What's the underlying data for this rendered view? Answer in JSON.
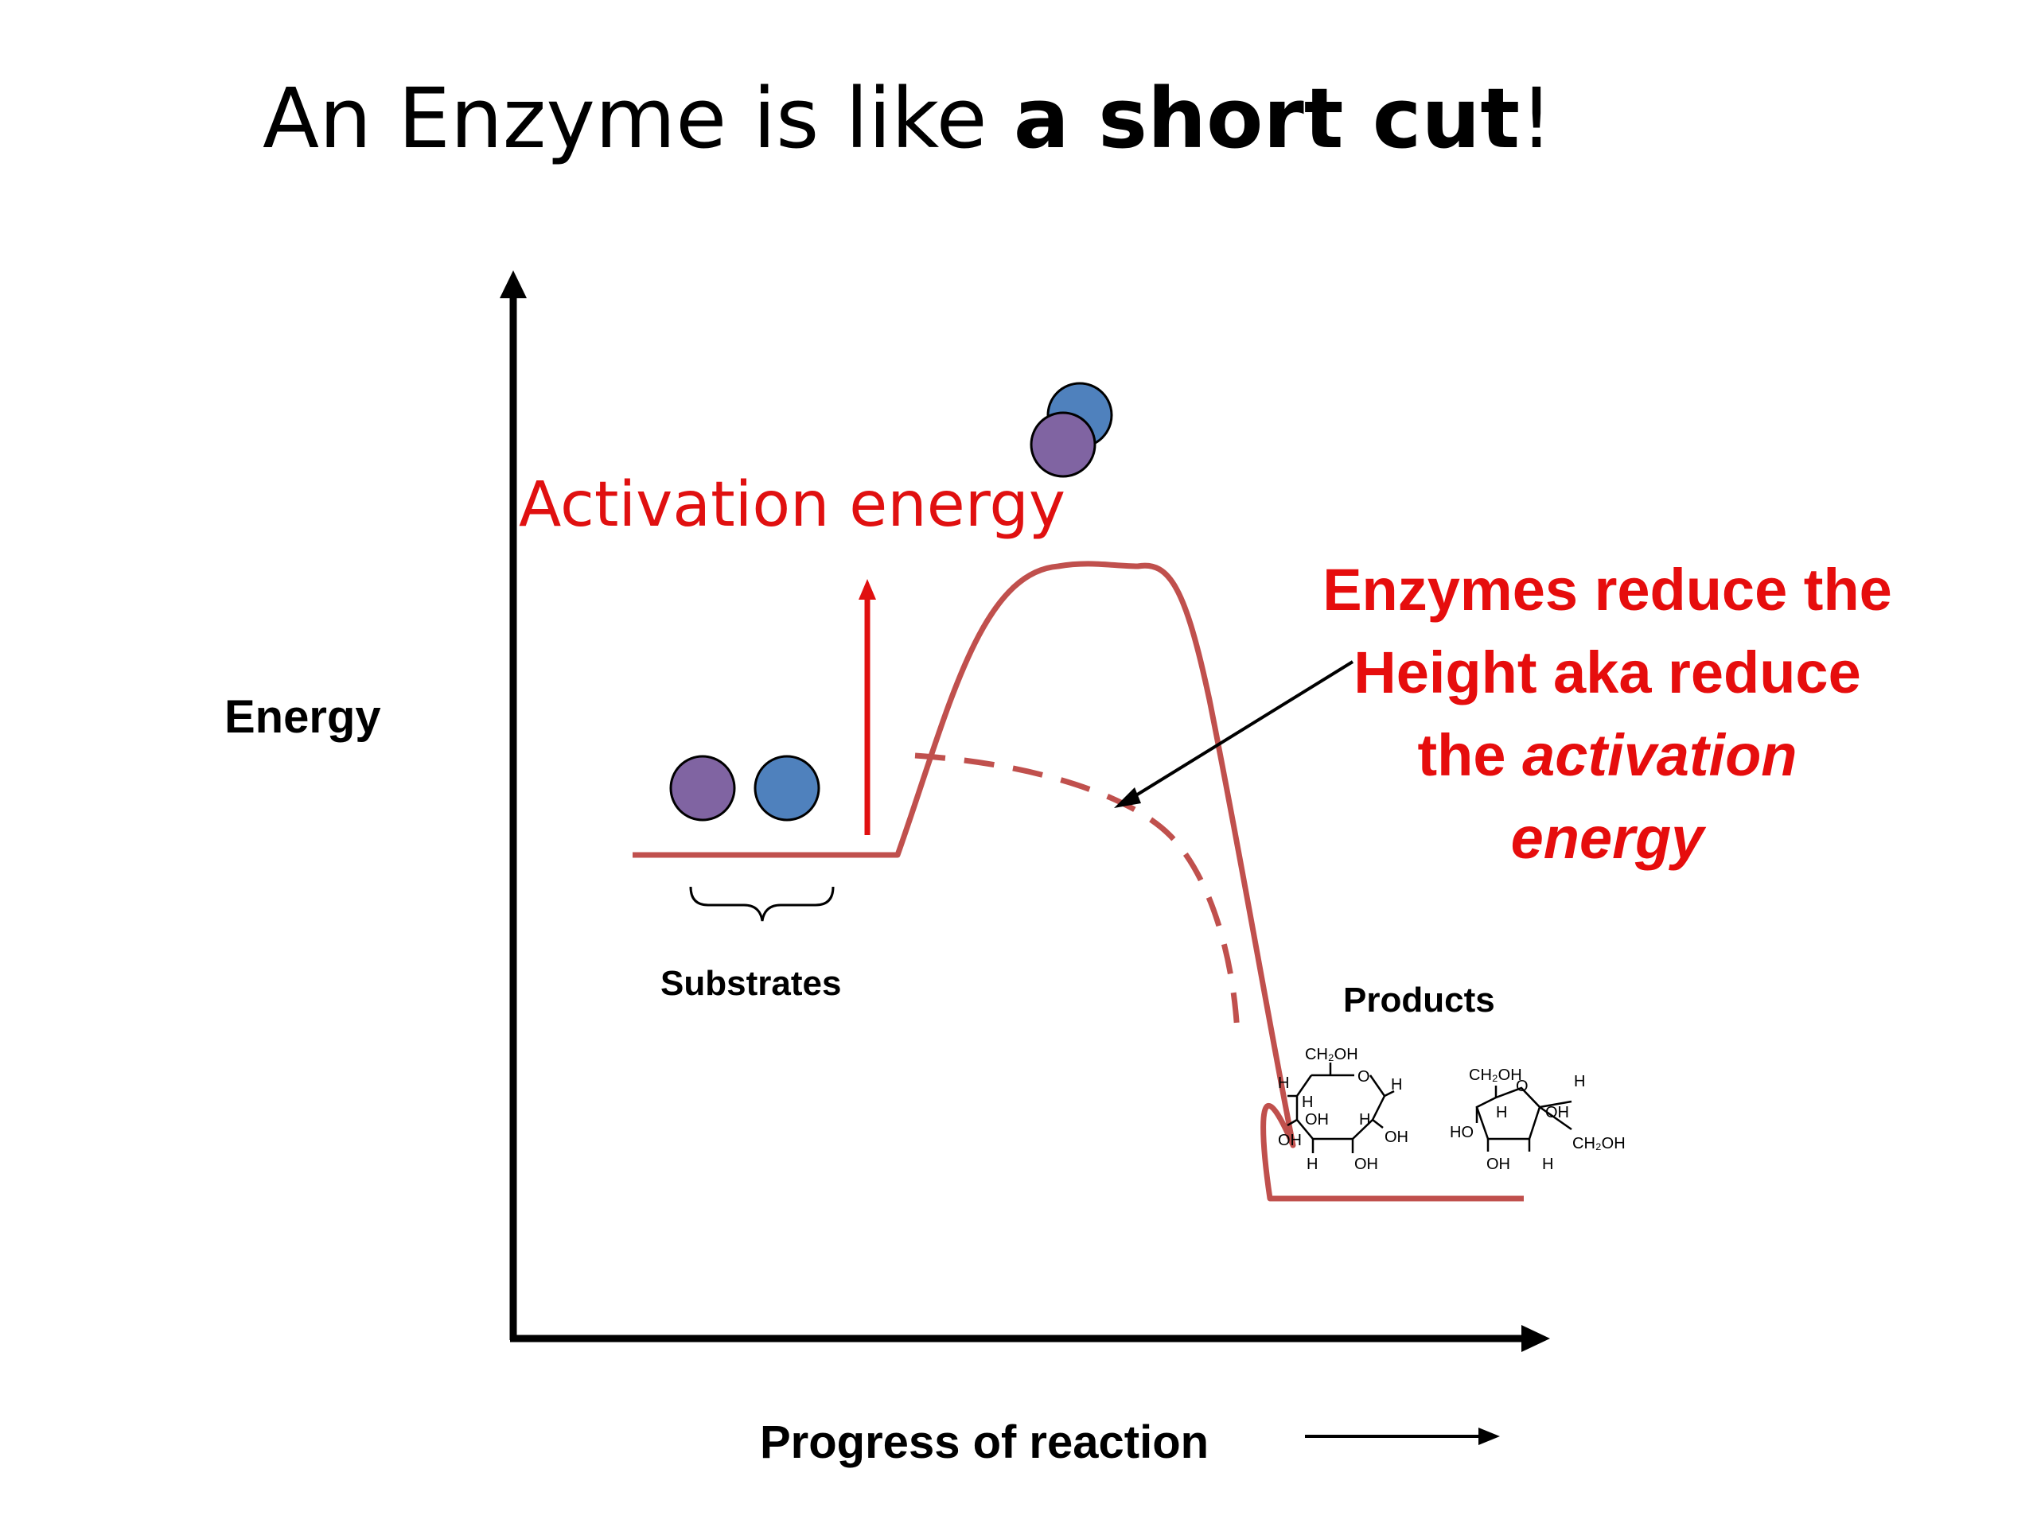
{
  "slide": {
    "title_regular": "An Enzyme is like ",
    "title_bold": "a short cut",
    "title_end": "!"
  },
  "axes": {
    "y_label": "Energy",
    "x_label": "Progress of reaction"
  },
  "labels": {
    "activation_energy": "Activation energy",
    "substrates": "Substrates",
    "products": "Products"
  },
  "note": {
    "line1": "Enzymes reduce the",
    "line2": "Height aka reduce",
    "line3_regular": "the ",
    "line3_italic": "activation",
    "line4_italic": "energy"
  },
  "chem": {
    "ch2oh": "CH₂OH",
    "o": "O",
    "h": "H",
    "oh": "OH",
    "ho": "HO"
  },
  "colors": {
    "curve": "#c0504d",
    "annotation_red": "#e60d0d",
    "molecule_purple": "#8064a2",
    "molecule_blue": "#4f81bd",
    "axis": "#000000"
  }
}
